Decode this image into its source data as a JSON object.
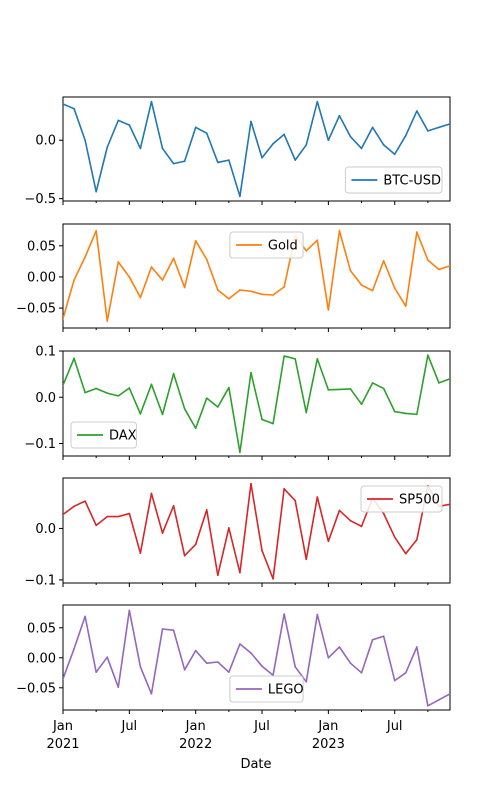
{
  "chart_data": {
    "type": "line",
    "xlabel": "Date",
    "x": [
      "2021-01",
      "2021-02",
      "2021-03",
      "2021-04",
      "2021-05",
      "2021-06",
      "2021-07",
      "2021-08",
      "2021-09",
      "2021-10",
      "2021-11",
      "2021-12",
      "2022-01",
      "2022-02",
      "2022-03",
      "2022-04",
      "2022-05",
      "2022-06",
      "2022-07",
      "2022-08",
      "2022-09",
      "2022-10",
      "2022-11",
      "2022-12",
      "2023-01",
      "2023-02",
      "2023-03",
      "2023-04",
      "2023-05",
      "2023-06",
      "2023-07",
      "2023-08",
      "2023-09",
      "2023-10",
      "2023-11",
      "2023-12"
    ],
    "x_tick_labels": [
      {
        "date": "2021-01",
        "line1": "Jan",
        "line2": "2021"
      },
      {
        "date": "2021-07",
        "line1": "Jul",
        "line2": ""
      },
      {
        "date": "2022-01",
        "line1": "Jan",
        "line2": "2022"
      },
      {
        "date": "2022-07",
        "line1": "Jul",
        "line2": ""
      },
      {
        "date": "2023-01",
        "line1": "Jan",
        "line2": "2023"
      },
      {
        "date": "2023-07",
        "line1": "Jul",
        "line2": ""
      }
    ],
    "x_range": [
      "2021-01",
      "2023-12"
    ],
    "series": [
      {
        "name": "BTC-USD",
        "color": "#1f77b4",
        "legend": "lower right",
        "ylim": [
          -0.52,
          0.37
        ],
        "yticks": [
          -0.5,
          0.0
        ],
        "ytick_labels": [
          "−0.5",
          "0.0"
        ],
        "values": [
          0.31,
          0.27,
          0.0,
          -0.44,
          -0.06,
          0.17,
          0.13,
          -0.07,
          0.33,
          -0.07,
          -0.2,
          -0.18,
          0.11,
          0.06,
          -0.19,
          -0.17,
          -0.48,
          0.16,
          -0.15,
          -0.03,
          0.05,
          -0.17,
          -0.04,
          0.33,
          0.0,
          0.21,
          0.03,
          -0.07,
          0.11,
          -0.04,
          -0.12,
          0.04,
          0.25,
          0.08,
          0.11,
          0.14
        ]
      },
      {
        "name": "Gold",
        "color": "#ff7f0e",
        "legend": "upper center",
        "ylim": [
          -0.082,
          0.085
        ],
        "yticks": [
          -0.05,
          0.0,
          0.05
        ],
        "ytick_labels": [
          "−0.05",
          "0.00",
          "0.05"
        ],
        "values": [
          -0.067,
          -0.005,
          0.032,
          0.074,
          -0.071,
          0.024,
          0.0,
          -0.033,
          0.016,
          -0.005,
          0.03,
          -0.017,
          0.058,
          0.028,
          -0.021,
          -0.035,
          -0.021,
          -0.023,
          -0.028,
          -0.029,
          -0.016,
          0.066,
          0.042,
          0.059,
          -0.053,
          0.074,
          0.01,
          -0.013,
          -0.022,
          0.026,
          -0.018,
          -0.047,
          0.072,
          0.027,
          0.012,
          0.018
        ]
      },
      {
        "name": "DAX",
        "color": "#2ca02c",
        "legend": "lower left",
        "ylim": [
          -0.127,
          0.1
        ],
        "yticks": [
          -0.1,
          0.0,
          0.1
        ],
        "ytick_labels": [
          "−0.1",
          "0.0",
          "0.1"
        ],
        "values": [
          0.026,
          0.084,
          0.01,
          0.019,
          0.009,
          0.003,
          0.02,
          -0.036,
          0.028,
          -0.037,
          0.051,
          -0.025,
          -0.067,
          -0.002,
          -0.021,
          0.021,
          -0.119,
          0.053,
          -0.048,
          -0.057,
          0.089,
          0.083,
          -0.033,
          0.083,
          0.016,
          0.017,
          0.018,
          -0.015,
          0.031,
          0.019,
          -0.031,
          -0.035,
          -0.037,
          0.091,
          0.031,
          0.04
        ]
      },
      {
        "name": "SP500",
        "color": "#d62728",
        "legend": "upper right",
        "ylim": [
          -0.106,
          0.098
        ],
        "yticks": [
          -0.1,
          0.0
        ],
        "ytick_labels": [
          "−0.1",
          "0.0"
        ],
        "values": [
          0.027,
          0.043,
          0.053,
          0.006,
          0.023,
          0.023,
          0.029,
          -0.048,
          0.068,
          -0.009,
          0.044,
          -0.053,
          -0.031,
          0.036,
          -0.091,
          0.001,
          -0.086,
          0.087,
          -0.043,
          -0.098,
          0.077,
          0.054,
          -0.06,
          0.061,
          -0.025,
          0.035,
          0.015,
          0.004,
          0.059,
          0.029,
          -0.017,
          -0.049,
          -0.022,
          0.083,
          0.043,
          0.047
        ]
      },
      {
        "name": "LEGO",
        "color": "#9467bd",
        "legend": "lower center",
        "ylim": [
          -0.087,
          0.088
        ],
        "yticks": [
          -0.05,
          0.0,
          0.05
        ],
        "ytick_labels": [
          "−0.05",
          "0.00",
          "0.05"
        ],
        "values": [
          -0.035,
          0.015,
          0.069,
          -0.024,
          0.001,
          -0.049,
          0.079,
          -0.015,
          -0.06,
          0.048,
          0.046,
          -0.02,
          0.012,
          -0.009,
          -0.007,
          -0.024,
          0.023,
          0.008,
          -0.014,
          -0.029,
          0.073,
          -0.015,
          -0.04,
          0.072,
          0.0,
          0.018,
          -0.009,
          -0.025,
          0.03,
          0.036,
          -0.038,
          -0.025,
          0.018,
          -0.08,
          -0.07,
          -0.06
        ]
      }
    ]
  }
}
